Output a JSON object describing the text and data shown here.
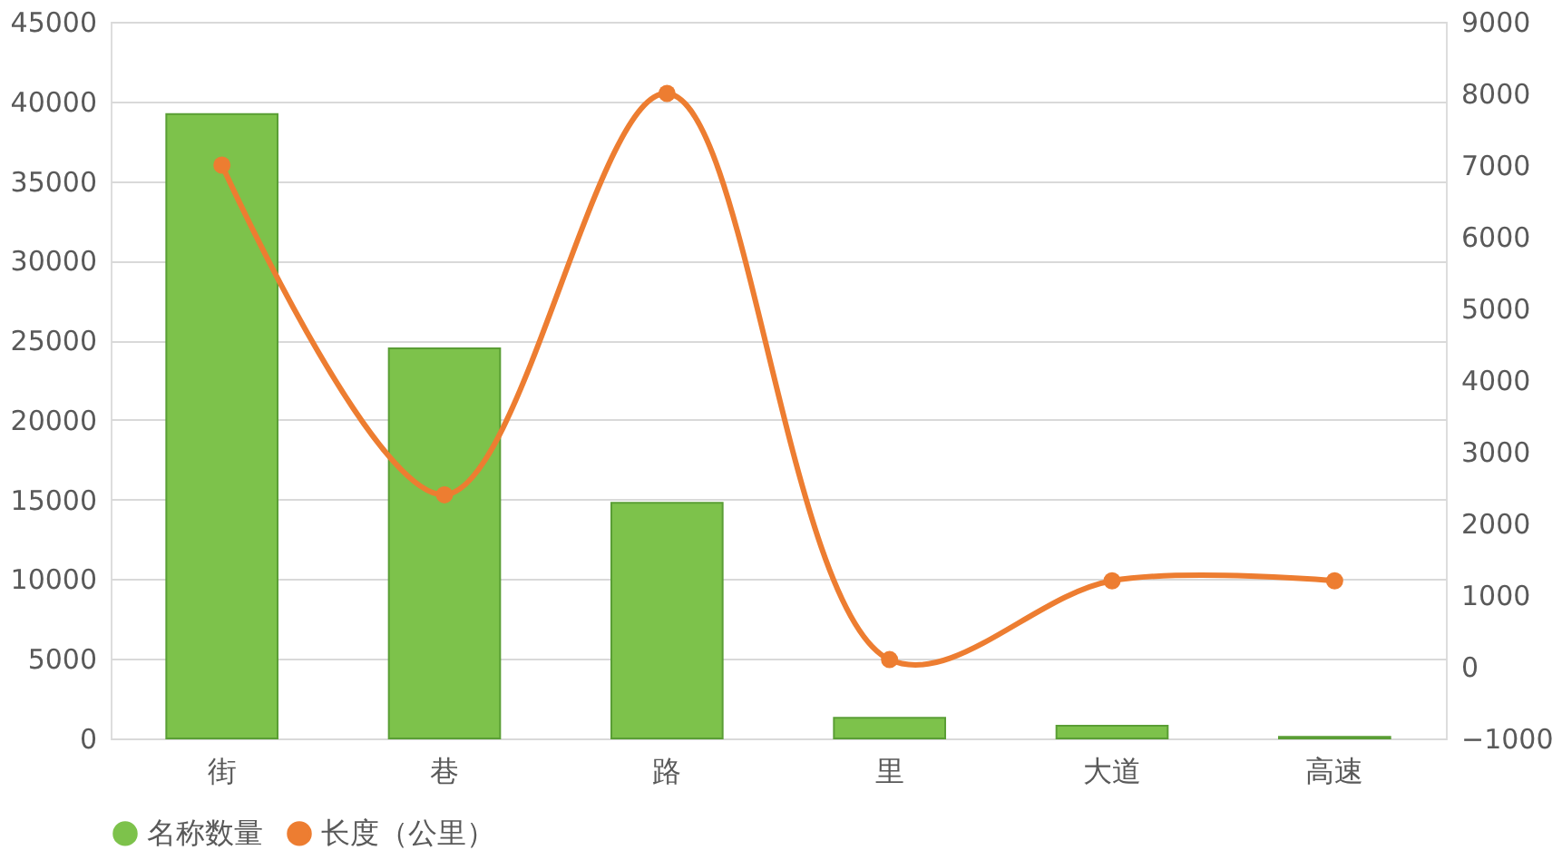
{
  "chart_data": {
    "type": "bar",
    "categories": [
      "街",
      "巷",
      "路",
      "里",
      "大道",
      "高速"
    ],
    "series": [
      {
        "name": "名称数量",
        "color": "#7dc24b",
        "values": [
          39200,
          24500,
          14800,
          1300,
          800,
          100
        ]
      },
      {
        "name": "长度（公里）",
        "type": "line",
        "axis": "y2",
        "color": "#ed7d31",
        "marker": "circle",
        "values": [
          7000,
          2400,
          8000,
          100,
          1200,
          1200
        ]
      }
    ],
    "ylim": [
      0,
      45000
    ],
    "yticks": [
      0,
      5000,
      10000,
      15000,
      20000,
      25000,
      30000,
      35000,
      40000,
      45000
    ],
    "y2lim": [
      -1000,
      9000
    ],
    "y2ticks": [
      -1000,
      0,
      1000,
      2000,
      3000,
      4000,
      5000,
      6000,
      7000,
      8000,
      9000
    ],
    "grid": "y",
    "legend": "bottom"
  }
}
